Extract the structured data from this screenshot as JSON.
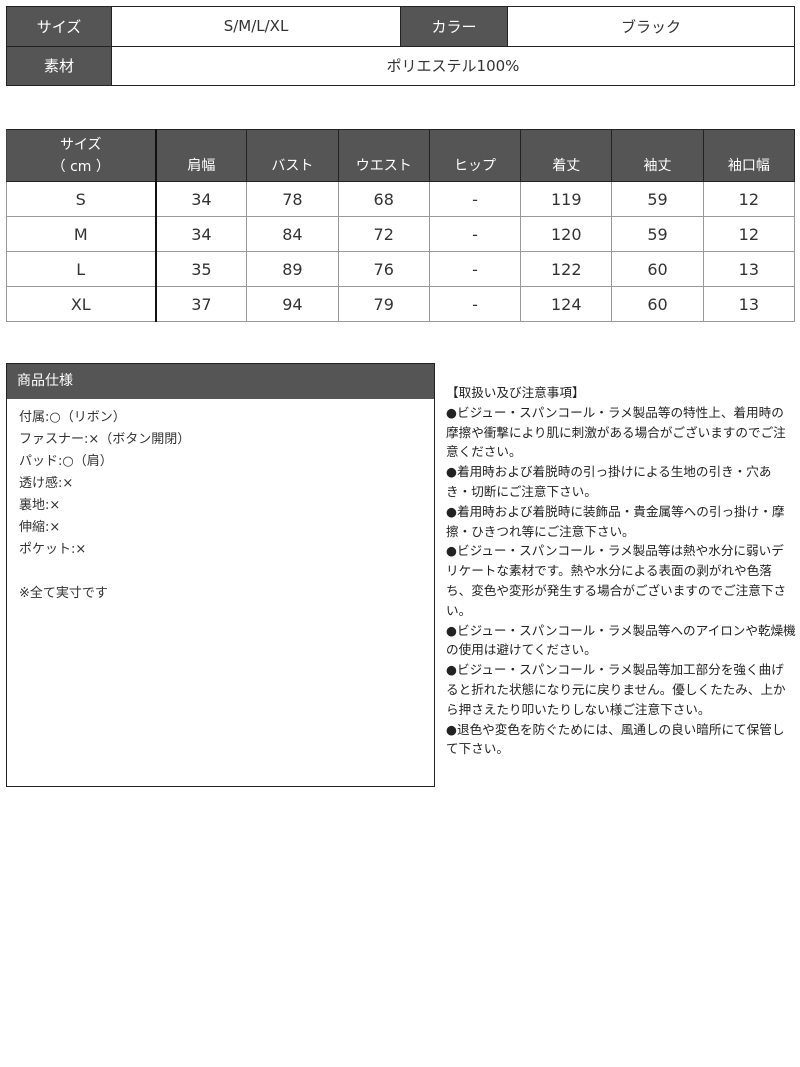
{
  "summary": {
    "size_label": "サイズ",
    "size_value": "S/M/L/XL",
    "color_label": "カラー",
    "color_value": "ブラック",
    "material_label": "素材",
    "material_value": "ポリエステル100%"
  },
  "size_table": {
    "header_line1": "サイズ",
    "header_line2": "（ cm ）",
    "columns": [
      "肩幅",
      "バスト",
      "ウエスト",
      "ヒップ",
      "着丈",
      "袖丈",
      "袖口幅"
    ],
    "rows": [
      [
        "S",
        "34",
        "78",
        "68",
        "-",
        "119",
        "59",
        "12"
      ],
      [
        "M",
        "34",
        "84",
        "72",
        "-",
        "120",
        "59",
        "12"
      ],
      [
        "L",
        "35",
        "89",
        "76",
        "-",
        "122",
        "60",
        "13"
      ],
      [
        "XL",
        "37",
        "94",
        "79",
        "-",
        "124",
        "60",
        "13"
      ]
    ]
  },
  "spec": {
    "title": "商品仕様",
    "items": [
      "付属:○（リボン）",
      "ファスナー:×（ボタン開閉）",
      "パッド:○（肩）",
      "透け感:×",
      "裏地:×",
      "伸縮:×",
      "ポケット:×",
      "",
      "※全て実寸です"
    ]
  },
  "notes": {
    "title": "【取扱い及び注意事項】",
    "items": [
      "●ビジュー・スパンコール・ラメ製品等の特性上、着用時の摩擦や衝撃により肌に刺激がある場合がございますのでご注意ください。",
      "●着用時および着脱時の引っ掛けによる生地の引き・穴あき・切断にご注意下さい。",
      "●着用時および着脱時に装飾品・貴金属等への引っ掛け・摩擦・ひきつれ等にご注意下さい。",
      "●ビジュー・スパンコール・ラメ製品等は熱や水分に弱いデリケートな素材です。熱や水分による表面の剥がれや色落ち、変色や変形が発生する場合がございますのでご注意下さい。",
      "●ビジュー・スパンコール・ラメ製品等へのアイロンや乾燥機の使用は避けてください。",
      "●ビジュー・スパンコール・ラメ製品等加工部分を強く曲げると折れた状態になり元に戻りません。優しくたたみ、上から押さえたり叩いたりしない様ご注意下さい。",
      "●退色や変色を防ぐためには、風通しの良い暗所にて保管して下さい。"
    ]
  },
  "colors": {
    "header_bg": "#555555",
    "header_text": "#ffffff"
  }
}
